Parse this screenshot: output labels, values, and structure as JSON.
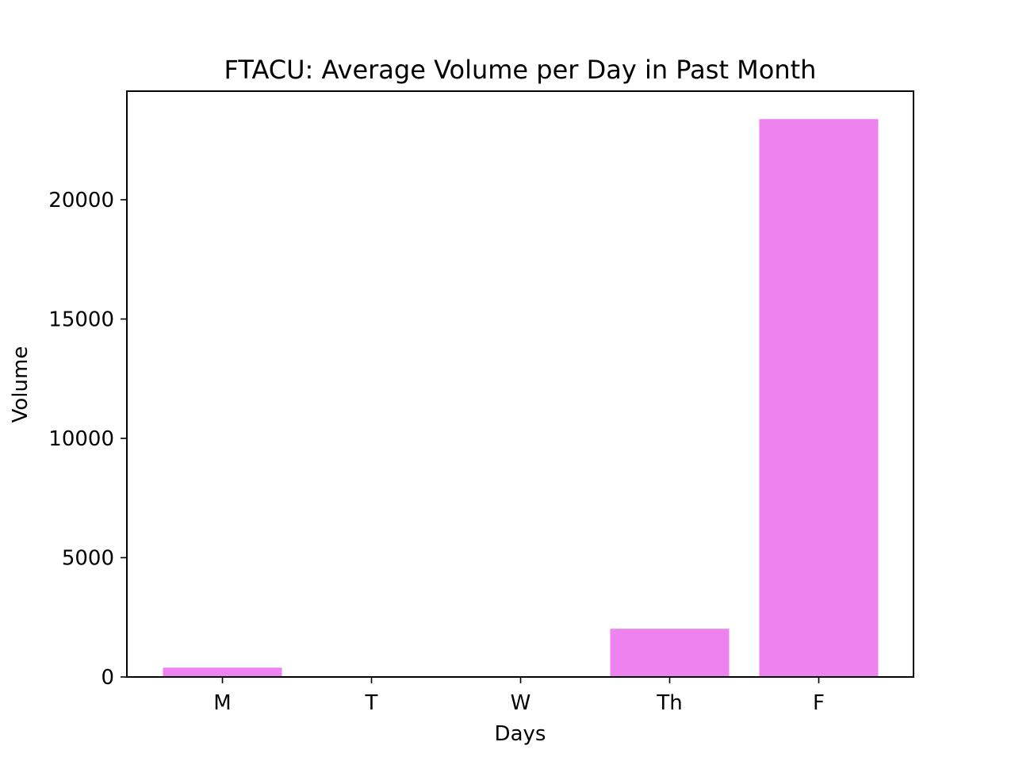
{
  "chart_data": {
    "type": "bar",
    "title": "FTACU: Average Volume per Day in Past Month",
    "xlabel": "Days",
    "ylabel": "Volume",
    "categories": [
      "M",
      "T",
      "W",
      "Th",
      "F"
    ],
    "values": [
      390,
      0,
      0,
      2020,
      23380
    ],
    "ylim": [
      0,
      24550
    ],
    "yticks": [
      0,
      5000,
      10000,
      15000,
      20000
    ],
    "ytick_labels": [
      "0",
      "5000",
      "10000",
      "15000",
      "20000"
    ],
    "bar_color": "#ee82ee",
    "grid": false,
    "legend": "none"
  }
}
